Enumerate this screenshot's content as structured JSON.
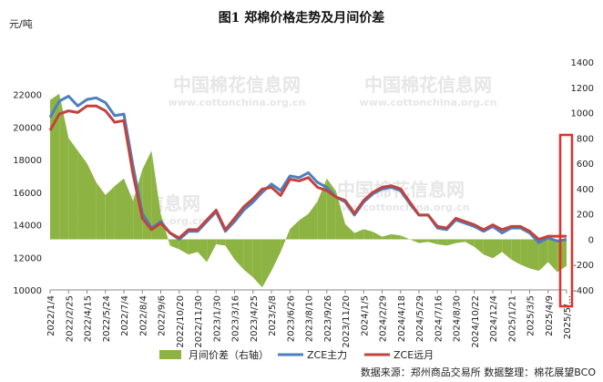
{
  "chart_data": {
    "type": "line",
    "title": "图1 郑棉价格走势及月间价差",
    "ylabel_left": "元/吨",
    "left_axis": {
      "ylim": [
        10000,
        24000
      ],
      "ticks": [
        10000,
        12000,
        14000,
        16000,
        18000,
        20000,
        22000
      ]
    },
    "right_axis": {
      "ylim": [
        -400,
        1400
      ],
      "ticks": [
        -400,
        -200,
        0,
        200,
        400,
        600,
        800,
        1000,
        1200,
        1400
      ]
    },
    "x_tick_labels": [
      "2022/1/4",
      "2022/2/25",
      "2022/4/15",
      "2022/5/24",
      "2022/7/4",
      "2022/8/4",
      "2022/9/6",
      "2022/10/20",
      "2022/11/30",
      "2023/1/30",
      "2023/3/16",
      "2023/4/25",
      "2023/5/8",
      "2023/6/26",
      "2023/8/10",
      "2023/9/26",
      "2023/11/20",
      "2024/1/5",
      "2024/2/29",
      "2024/4/18",
      "2024/5/29",
      "2024/7/16",
      "2024/8/30",
      "2024/10/22",
      "2024/12/4",
      "2025/1/21",
      "2025/3/5",
      "2025/4/9",
      "2025/5/..."
    ],
    "series": [
      {
        "name": "月间价差（右轴）",
        "axis": "right",
        "kind": "bar",
        "color": "#8db442",
        "x": [
          0,
          0.5,
          1,
          1.5,
          2,
          2.5,
          3,
          3.5,
          4,
          4.5,
          5,
          5.5,
          6,
          6.5,
          7,
          7.5,
          8,
          8.5,
          9,
          9.5,
          10,
          10.5,
          11,
          11.5,
          12,
          12.5,
          13,
          13.5,
          14,
          14.5,
          15,
          15.5,
          16,
          16.5,
          17,
          17.5,
          18,
          18.5,
          19,
          19.5,
          20,
          20.5,
          21,
          21.5,
          22,
          22.5,
          23,
          23.5,
          24,
          24.5,
          25,
          25.5,
          26,
          26.5,
          27,
          27.5,
          28
        ],
        "values": [
          1100,
          1150,
          800,
          700,
          600,
          450,
          350,
          420,
          480,
          300,
          550,
          700,
          200,
          -50,
          -80,
          -120,
          -100,
          -180,
          -40,
          -50,
          -160,
          -240,
          -300,
          -380,
          -250,
          -100,
          80,
          150,
          200,
          300,
          480,
          380,
          120,
          50,
          80,
          60,
          20,
          40,
          30,
          0,
          -30,
          -20,
          -40,
          -50,
          -30,
          -20,
          -60,
          -120,
          -150,
          -100,
          -160,
          -200,
          -230,
          -250,
          -180,
          -260,
          -210
        ]
      },
      {
        "name": "ZCE主力",
        "axis": "left",
        "kind": "line",
        "color": "#4e7fc0",
        "x": [
          0,
          0.5,
          1,
          1.5,
          2,
          2.5,
          3,
          3.5,
          4,
          4.5,
          5,
          5.5,
          6,
          6.5,
          7,
          7.5,
          8,
          8.5,
          9,
          9.5,
          10,
          10.5,
          11,
          11.5,
          12,
          12.5,
          13,
          13.5,
          14,
          14.5,
          15,
          15.5,
          16,
          16.5,
          17,
          17.5,
          18,
          18.5,
          19,
          19.5,
          20,
          20.5,
          21,
          21.5,
          22,
          22.5,
          23,
          23.5,
          24,
          24.5,
          25,
          25.5,
          26,
          26.5,
          27,
          27.5,
          28
        ],
        "values": [
          20600,
          21600,
          21900,
          21300,
          21700,
          21800,
          21500,
          20700,
          20800,
          17600,
          14700,
          13800,
          14200,
          13500,
          13100,
          13600,
          13600,
          14200,
          14800,
          13600,
          14200,
          14900,
          15400,
          16000,
          16500,
          16100,
          17000,
          16900,
          17200,
          16600,
          16300,
          15700,
          15400,
          14600,
          15400,
          15900,
          16200,
          16300,
          16100,
          15300,
          14600,
          14600,
          13800,
          13700,
          14300,
          14100,
          13900,
          13600,
          13900,
          13500,
          13800,
          13800,
          13500,
          12900,
          13200,
          13000,
          13100
        ]
      },
      {
        "name": "ZCE远月",
        "axis": "left",
        "kind": "line",
        "color": "#c0433e",
        "x": [
          0,
          0.5,
          1,
          1.5,
          2,
          2.5,
          3,
          3.5,
          4,
          4.5,
          5,
          5.5,
          6,
          6.5,
          7,
          7.5,
          8,
          8.5,
          9,
          9.5,
          10,
          10.5,
          11,
          11.5,
          12,
          12.5,
          13,
          13.5,
          14,
          14.5,
          15,
          15.5,
          16,
          16.5,
          17,
          17.5,
          18,
          18.5,
          19,
          19.5,
          20,
          20.5,
          21,
          21.5,
          22,
          22.5,
          23,
          23.5,
          24,
          24.5,
          25,
          25.5,
          26,
          26.5,
          27,
          27.5,
          28
        ],
        "values": [
          19800,
          20800,
          21000,
          20900,
          21300,
          21300,
          21000,
          20300,
          20400,
          17100,
          14400,
          13700,
          14100,
          13500,
          13200,
          13700,
          13700,
          14300,
          14900,
          13700,
          14400,
          15100,
          15600,
          16200,
          16300,
          15800,
          16800,
          16700,
          16900,
          16300,
          16100,
          15700,
          15500,
          14700,
          15500,
          16000,
          16300,
          16400,
          16200,
          15400,
          14600,
          14600,
          13900,
          13800,
          14400,
          14200,
          14000,
          13700,
          14000,
          13700,
          13900,
          13900,
          13600,
          13100,
          13300,
          13300,
          13300
        ]
      }
    ],
    "legend_position": "bottom",
    "grid": false
  },
  "footer": {
    "source": "数据来源：郑州商品交易所    数据整理：棉花展望BCO"
  },
  "watermark": {
    "text1": "中国棉花信息网",
    "text2": "www.cottonchina.org.cn"
  },
  "colors": {
    "highlight_box": "#e0302b"
  }
}
